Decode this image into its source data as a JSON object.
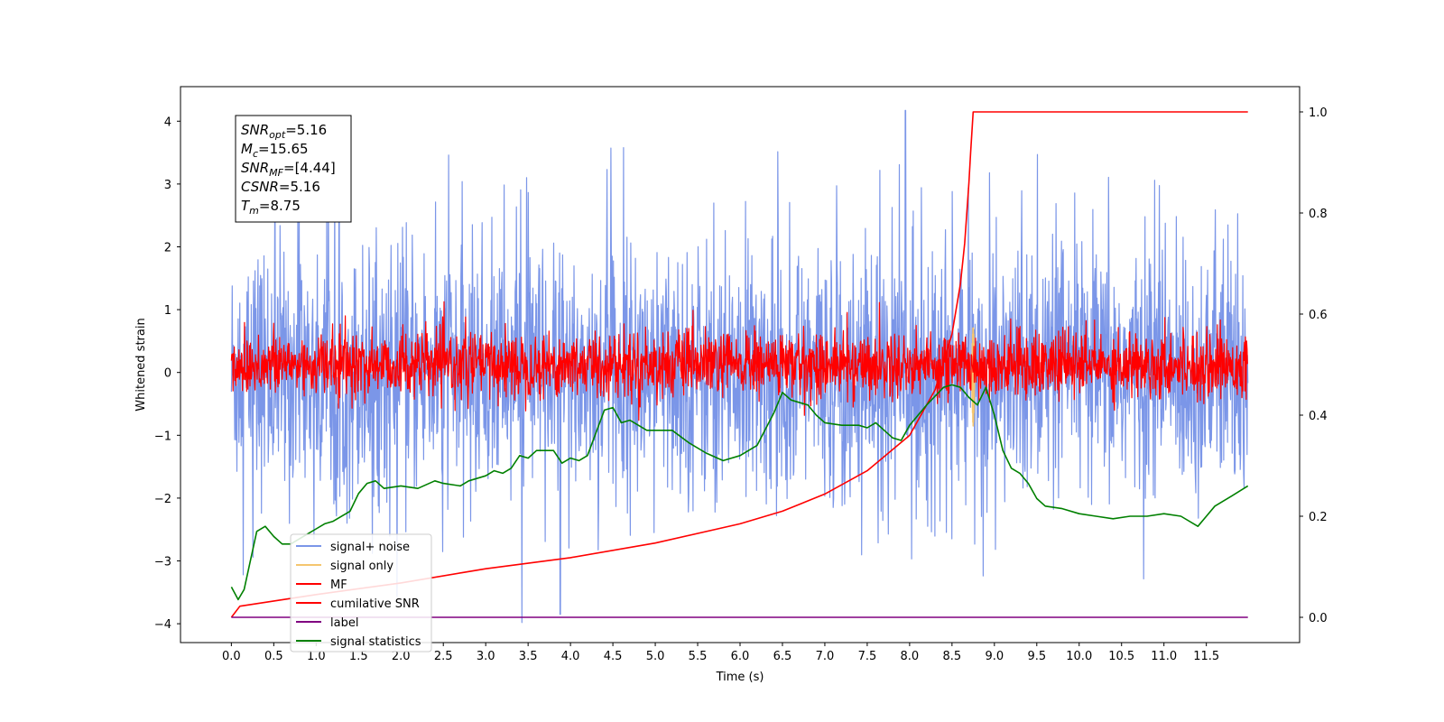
{
  "chart_data": {
    "type": "line",
    "xlabel": "Time (s)",
    "ylabel": "Whitened strain",
    "xlim": [
      -0.6,
      12.6
    ],
    "ylim": [
      -4.3,
      4.55
    ],
    "y2lim": [
      -0.05,
      1.05
    ],
    "x_ticks": [
      "0.0",
      "0.5",
      "1.0",
      "1.5",
      "2.0",
      "2.5",
      "3.0",
      "3.5",
      "4.0",
      "4.5",
      "5.0",
      "5.5",
      "6.0",
      "6.5",
      "7.0",
      "7.5",
      "8.0",
      "8.5",
      "9.0",
      "9.5",
      "10.0",
      "10.5",
      "11.0",
      "11.5"
    ],
    "y_ticks": [
      "4",
      "3",
      "2",
      "1",
      "0",
      "−1",
      "−2",
      "−3",
      "−4"
    ],
    "y2_ticks": [
      "1.0",
      "0.8",
      "0.6",
      "0.4",
      "0.2",
      "0.0"
    ],
    "legend_position": "lower-left",
    "annotations": [
      {
        "base": "SNR",
        "sub": "opt",
        "rest": "=5.16"
      },
      {
        "base": "M",
        "sub": "c",
        "rest": "=15.65"
      },
      {
        "base": "SNR",
        "sub": "MF",
        "rest": "=[4.44]"
      },
      {
        "base": "CSNR",
        "sub": "",
        "rest": "=5.16"
      },
      {
        "base": "T",
        "sub": "m",
        "rest": "=8.75"
      }
    ],
    "series": [
      {
        "name": "signal+ noise",
        "color": "#7b96e8",
        "axis": "left",
        "kind": "noise",
        "range": [
          -1.8,
          1.8
        ],
        "spike_max": 4.17,
        "spike_min": -3.85
      },
      {
        "name": "signal only",
        "color": "#f5c66f",
        "axis": "left",
        "kind": "burst",
        "center": 8.75,
        "range": [
          -0.85,
          0.72
        ]
      },
      {
        "name": "MF",
        "color": "#ff0000",
        "axis": "left",
        "kind": "noise",
        "range": [
          -0.35,
          0.6
        ]
      },
      {
        "name": "cumilative SNR",
        "color": "#ff0000",
        "axis": "right",
        "x": [
          0.0,
          0.1,
          1.0,
          2.0,
          3.0,
          4.0,
          5.0,
          6.0,
          6.5,
          7.0,
          7.5,
          8.0,
          8.3,
          8.5,
          8.6,
          8.65,
          8.7,
          8.72,
          8.75,
          11.5,
          11.99
        ],
        "y": [
          0.0,
          0.022,
          0.045,
          0.068,
          0.096,
          0.118,
          0.147,
          0.185,
          0.21,
          0.244,
          0.29,
          0.36,
          0.45,
          0.56,
          0.66,
          0.74,
          0.86,
          0.92,
          1.0,
          1.0,
          1.0
        ]
      },
      {
        "name": "label",
        "color": "#800080",
        "axis": "right",
        "x": [
          0.0,
          11.99
        ],
        "y": [
          0.0,
          0.0
        ]
      },
      {
        "name": "signal statistics",
        "color": "#008000",
        "axis": "right",
        "x": [
          0.0,
          0.08,
          0.15,
          0.3,
          0.4,
          0.5,
          0.6,
          0.7,
          0.8,
          0.9,
          1.0,
          1.1,
          1.2,
          1.4,
          1.5,
          1.6,
          1.7,
          1.8,
          2.0,
          2.2,
          2.4,
          2.5,
          2.7,
          2.8,
          3.0,
          3.1,
          3.2,
          3.3,
          3.4,
          3.5,
          3.6,
          3.8,
          3.9,
          4.0,
          4.1,
          4.2,
          4.3,
          4.4,
          4.5,
          4.6,
          4.7,
          4.8,
          4.9,
          5.0,
          5.2,
          5.4,
          5.6,
          5.8,
          6.0,
          6.2,
          6.4,
          6.5,
          6.6,
          6.8,
          6.9,
          7.0,
          7.2,
          7.4,
          7.5,
          7.6,
          7.7,
          7.8,
          7.9,
          8.0,
          8.2,
          8.4,
          8.5,
          8.6,
          8.7,
          8.8,
          8.9,
          9.0,
          9.1,
          9.2,
          9.3,
          9.4,
          9.5,
          9.6,
          9.8,
          10.0,
          10.2,
          10.4,
          10.6,
          10.8,
          11.0,
          11.2,
          11.4,
          11.5,
          11.6,
          11.8,
          11.99
        ],
        "y": [
          0.06,
          0.035,
          0.055,
          0.17,
          0.18,
          0.16,
          0.145,
          0.145,
          0.155,
          0.165,
          0.175,
          0.185,
          0.19,
          0.21,
          0.245,
          0.265,
          0.27,
          0.255,
          0.26,
          0.255,
          0.27,
          0.265,
          0.26,
          0.27,
          0.28,
          0.29,
          0.285,
          0.295,
          0.32,
          0.315,
          0.33,
          0.33,
          0.305,
          0.315,
          0.31,
          0.32,
          0.365,
          0.41,
          0.415,
          0.385,
          0.39,
          0.38,
          0.37,
          0.37,
          0.37,
          0.345,
          0.325,
          0.31,
          0.32,
          0.34,
          0.405,
          0.445,
          0.43,
          0.42,
          0.4,
          0.385,
          0.38,
          0.38,
          0.375,
          0.385,
          0.37,
          0.355,
          0.35,
          0.38,
          0.42,
          0.455,
          0.46,
          0.455,
          0.435,
          0.42,
          0.455,
          0.4,
          0.33,
          0.295,
          0.285,
          0.265,
          0.235,
          0.22,
          0.215,
          0.205,
          0.2,
          0.195,
          0.2,
          0.2,
          0.205,
          0.2,
          0.18,
          0.2,
          0.22,
          0.24,
          0.26
        ]
      }
    ]
  }
}
